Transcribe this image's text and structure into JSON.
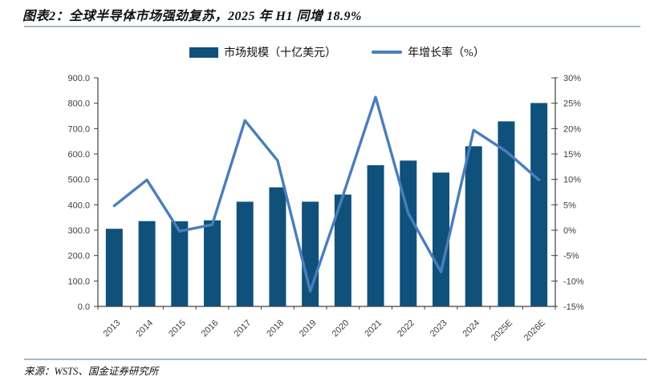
{
  "figure": {
    "title": "图表2：全球半导体市场强劲复苏，2025 年 H1 同增 18.9%",
    "source": "来源：WSTS、国金证券研究所"
  },
  "legend": {
    "items": [
      {
        "label": "市场规模（十亿美元）",
        "swatch": "bar"
      },
      {
        "label": "年增长率（%）",
        "swatch": "line"
      }
    ]
  },
  "colors": {
    "bar": "#10517c",
    "line": "#4a7ebb",
    "axis": "#404040",
    "rule": "#a9b8c7",
    "text": "#3f3f3f"
  },
  "chart_data": {
    "type": "combo",
    "title": "图表2：全球半导体市场强劲复苏，2025 年 H1 同增 18.9%",
    "categories": [
      "2013",
      "2014",
      "2015",
      "2016",
      "2017",
      "2018",
      "2019",
      "2020",
      "2021",
      "2022",
      "2023",
      "2024",
      "2025E",
      "2026E"
    ],
    "series": [
      {
        "name": "市场规模（十亿美元）",
        "type": "bar",
        "axis": "left",
        "values": [
          305.6,
          335.8,
          335.2,
          338.9,
          412.2,
          468.8,
          412.3,
          440.4,
          555.9,
          574.1,
          526.9,
          630.5,
          728.5,
          800.8
        ]
      },
      {
        "name": "年增长率（%）",
        "type": "line",
        "axis": "right",
        "values": [
          4.8,
          9.9,
          -0.2,
          1.1,
          21.6,
          13.7,
          -12.0,
          6.8,
          26.2,
          3.3,
          -8.2,
          19.7,
          15.5,
          9.9
        ]
      }
    ],
    "left_axis": {
      "min": 0,
      "max": 900,
      "step": 100,
      "labels": [
        "900.0",
        "800.0",
        "700.0",
        "600.0",
        "500.0",
        "400.0",
        "300.0",
        "200.0",
        "100.0",
        "0.0"
      ]
    },
    "right_axis": {
      "min": -15,
      "max": 30,
      "step": 5,
      "labels": [
        "30%",
        "25%",
        "20%",
        "15%",
        "10%",
        "5%",
        "0%",
        "-5%",
        "-10%",
        "-15%"
      ]
    },
    "legend_position": "top",
    "grid": false
  }
}
